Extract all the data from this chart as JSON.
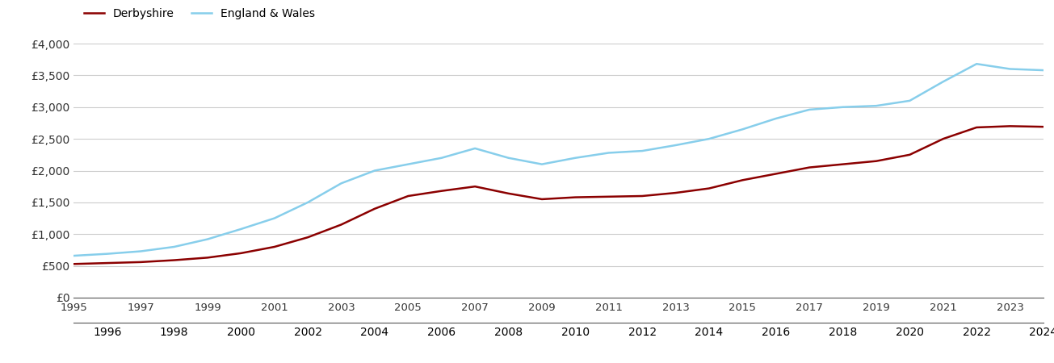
{
  "years": [
    1995,
    1996,
    1997,
    1998,
    1999,
    2000,
    2001,
    2002,
    2003,
    2004,
    2005,
    2006,
    2007,
    2008,
    2009,
    2010,
    2011,
    2012,
    2013,
    2014,
    2015,
    2016,
    2017,
    2018,
    2019,
    2020,
    2021,
    2022,
    2023,
    2024
  ],
  "derbyshire": [
    530,
    545,
    560,
    590,
    630,
    700,
    800,
    950,
    1150,
    1400,
    1600,
    1680,
    1750,
    1640,
    1550,
    1580,
    1590,
    1600,
    1650,
    1720,
    1850,
    1950,
    2050,
    2100,
    2150,
    2250,
    2500,
    2680,
    2700,
    2690
  ],
  "england_wales": [
    660,
    690,
    730,
    800,
    920,
    1080,
    1250,
    1500,
    1800,
    2000,
    2100,
    2200,
    2350,
    2200,
    2100,
    2200,
    2280,
    2310,
    2400,
    2500,
    2650,
    2820,
    2960,
    3000,
    3020,
    3100,
    3400,
    3680,
    3600,
    3580
  ],
  "derbyshire_color": "#8B0000",
  "england_wales_color": "#87CEEB",
  "derbyshire_label": "Derbyshire",
  "england_wales_label": "England & Wales",
  "ylim": [
    0,
    4000
  ],
  "yticks": [
    0,
    500,
    1000,
    1500,
    2000,
    2500,
    3000,
    3500,
    4000
  ],
  "ytick_labels": [
    "£0",
    "£500",
    "£1,000",
    "£1,500",
    "£2,000",
    "£2,500",
    "£3,000",
    "£3,500",
    "£4,000"
  ],
  "line_width": 1.8,
  "background_color": "#ffffff",
  "grid_color": "#cccccc"
}
